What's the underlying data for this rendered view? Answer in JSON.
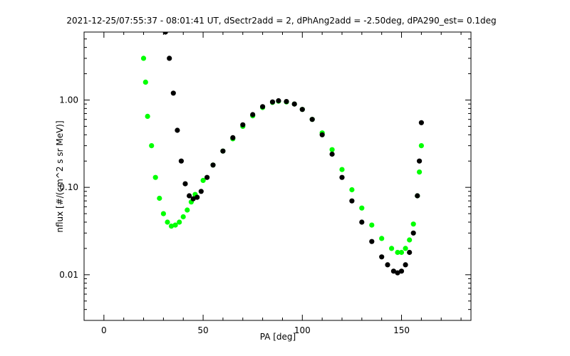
{
  "chart_data": {
    "type": "scatter",
    "title": "2021-12-25/07:55:37 - 08:01:41 UT, dSectr2add = 2, dPhAng2add = -2.50deg, dPA290_est=   0.1deg",
    "xlabel": "PA [deg]",
    "ylabel": "nflux [#/(cm^2 s sr MeV)]",
    "x_scale": "linear",
    "y_scale": "log",
    "xlim": [
      -10,
      185
    ],
    "ylim": [
      0.003,
      6
    ],
    "x_ticks": [
      0,
      50,
      100,
      150
    ],
    "x_tick_labels": [
      "0",
      "50",
      "100",
      "150"
    ],
    "y_ticks": [
      0.01,
      0.1,
      1.0
    ],
    "y_tick_labels": [
      "0.01",
      "0.10",
      "1.00"
    ],
    "grid": false,
    "colors": {
      "red": "#ff0000",
      "blue": "#0000ff",
      "green": "#00ff00",
      "black": "#000000"
    },
    "series": [
      {
        "color": "green",
        "marker": "dot",
        "points": [
          [
            20,
            3.0
          ],
          [
            21,
            1.6
          ],
          [
            22,
            0.65
          ],
          [
            24,
            0.3
          ],
          [
            26,
            0.13
          ],
          [
            28,
            0.075
          ],
          [
            30,
            0.05
          ],
          [
            32,
            0.04
          ],
          [
            34,
            0.036
          ],
          [
            36,
            0.037
          ],
          [
            38,
            0.04
          ],
          [
            40,
            0.046
          ],
          [
            42,
            0.055
          ],
          [
            44,
            0.068
          ],
          [
            46,
            0.083
          ],
          [
            50,
            0.12
          ],
          [
            55,
            0.18
          ],
          [
            60,
            0.26
          ],
          [
            65,
            0.36
          ],
          [
            70,
            0.5
          ],
          [
            75,
            0.66
          ],
          [
            80,
            0.82
          ],
          [
            85,
            0.94
          ],
          [
            88,
            0.97
          ],
          [
            92,
            0.95
          ],
          [
            96,
            0.9
          ],
          [
            100,
            0.78
          ],
          [
            105,
            0.6
          ],
          [
            110,
            0.42
          ],
          [
            115,
            0.27
          ],
          [
            120,
            0.16
          ],
          [
            125,
            0.094
          ],
          [
            130,
            0.058
          ],
          [
            135,
            0.037
          ],
          [
            140,
            0.026
          ],
          [
            145,
            0.02
          ],
          [
            148,
            0.018
          ],
          [
            150,
            0.018
          ],
          [
            152,
            0.02
          ],
          [
            154,
            0.025
          ],
          [
            156,
            0.038
          ],
          [
            158,
            0.08
          ],
          [
            159,
            0.15
          ],
          [
            160,
            0.3
          ]
        ]
      },
      {
        "color": "black",
        "marker": "dot",
        "points": [
          [
            31,
            6.0
          ],
          [
            33,
            3.0
          ],
          [
            35,
            1.2
          ],
          [
            37,
            0.45
          ],
          [
            39,
            0.2
          ],
          [
            41,
            0.11
          ],
          [
            43,
            0.08
          ],
          [
            45,
            0.074
          ],
          [
            47,
            0.077
          ],
          [
            49,
            0.09
          ],
          [
            52,
            0.13
          ],
          [
            55,
            0.18
          ],
          [
            60,
            0.26
          ],
          [
            65,
            0.37
          ],
          [
            70,
            0.52
          ],
          [
            75,
            0.68
          ],
          [
            80,
            0.84
          ],
          [
            85,
            0.95
          ],
          [
            88,
            0.98
          ],
          [
            92,
            0.96
          ],
          [
            96,
            0.9
          ],
          [
            100,
            0.78
          ],
          [
            105,
            0.6
          ],
          [
            110,
            0.4
          ],
          [
            115,
            0.24
          ],
          [
            120,
            0.13
          ],
          [
            125,
            0.07
          ],
          [
            130,
            0.04
          ],
          [
            135,
            0.024
          ],
          [
            140,
            0.016
          ],
          [
            143,
            0.013
          ],
          [
            146,
            0.011
          ],
          [
            148,
            0.0105
          ],
          [
            150,
            0.011
          ],
          [
            152,
            0.013
          ],
          [
            154,
            0.018
          ],
          [
            156,
            0.03
          ],
          [
            158,
            0.08
          ],
          [
            159,
            0.2
          ],
          [
            160,
            0.55
          ]
        ]
      }
    ]
  }
}
